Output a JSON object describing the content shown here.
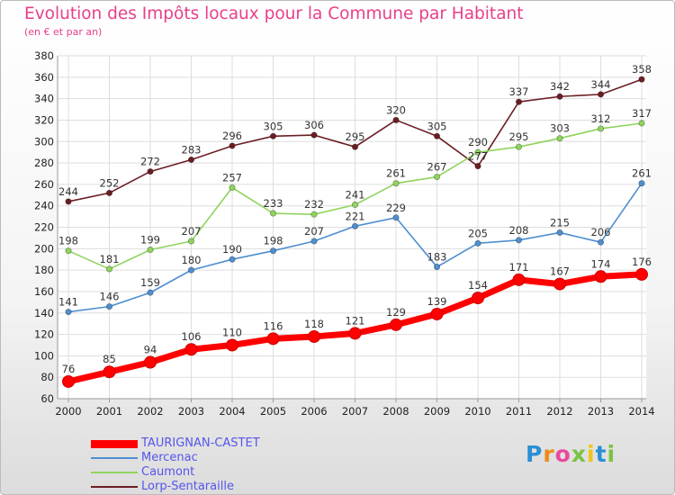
{
  "header": {
    "title": "Evolution des Impôts locaux pour la Commune par Habitant",
    "subtitle": "(en € et par an)"
  },
  "logo": {
    "letters": [
      "P",
      "r",
      "o",
      "x",
      "i",
      "t",
      "i"
    ]
  },
  "chart_data": {
    "type": "line",
    "title": "Evolution des Impôts locaux pour la Commune par Habitant",
    "subtitle": "(en € et par an)",
    "x": [
      "2000",
      "2001",
      "2002",
      "2003",
      "2004",
      "2005",
      "2006",
      "2007",
      "2008",
      "2009",
      "2010",
      "2011",
      "2012",
      "2013",
      "2014"
    ],
    "ylim": [
      60,
      380
    ],
    "yticks": [
      60,
      80,
      100,
      120,
      140,
      160,
      180,
      200,
      220,
      240,
      260,
      280,
      300,
      320,
      340,
      360,
      380
    ],
    "grid": true,
    "legend_position": "bottom-left",
    "series": [
      {
        "name": "TAURIGNAN-CASTET",
        "color": "#ff0000",
        "values": [
          76,
          85,
          94,
          106,
          110,
          116,
          118,
          121,
          129,
          139,
          154,
          171,
          167,
          174,
          176
        ]
      },
      {
        "name": "Mercenac",
        "color": "#4f8fcf",
        "values": [
          141,
          146,
          159,
          180,
          190,
          198,
          207,
          221,
          229,
          183,
          205,
          208,
          215,
          206,
          261
        ]
      },
      {
        "name": "Caumont",
        "color": "#8fd45e",
        "values": [
          198,
          181,
          199,
          207,
          257,
          233,
          232,
          241,
          261,
          267,
          290,
          295,
          303,
          312,
          317
        ]
      },
      {
        "name": "Lorp-Sentaraille",
        "color": "#6b1d24",
        "values": [
          244,
          252,
          272,
          283,
          296,
          305,
          306,
          295,
          320,
          305,
          277,
          337,
          342,
          344,
          358
        ]
      }
    ]
  }
}
